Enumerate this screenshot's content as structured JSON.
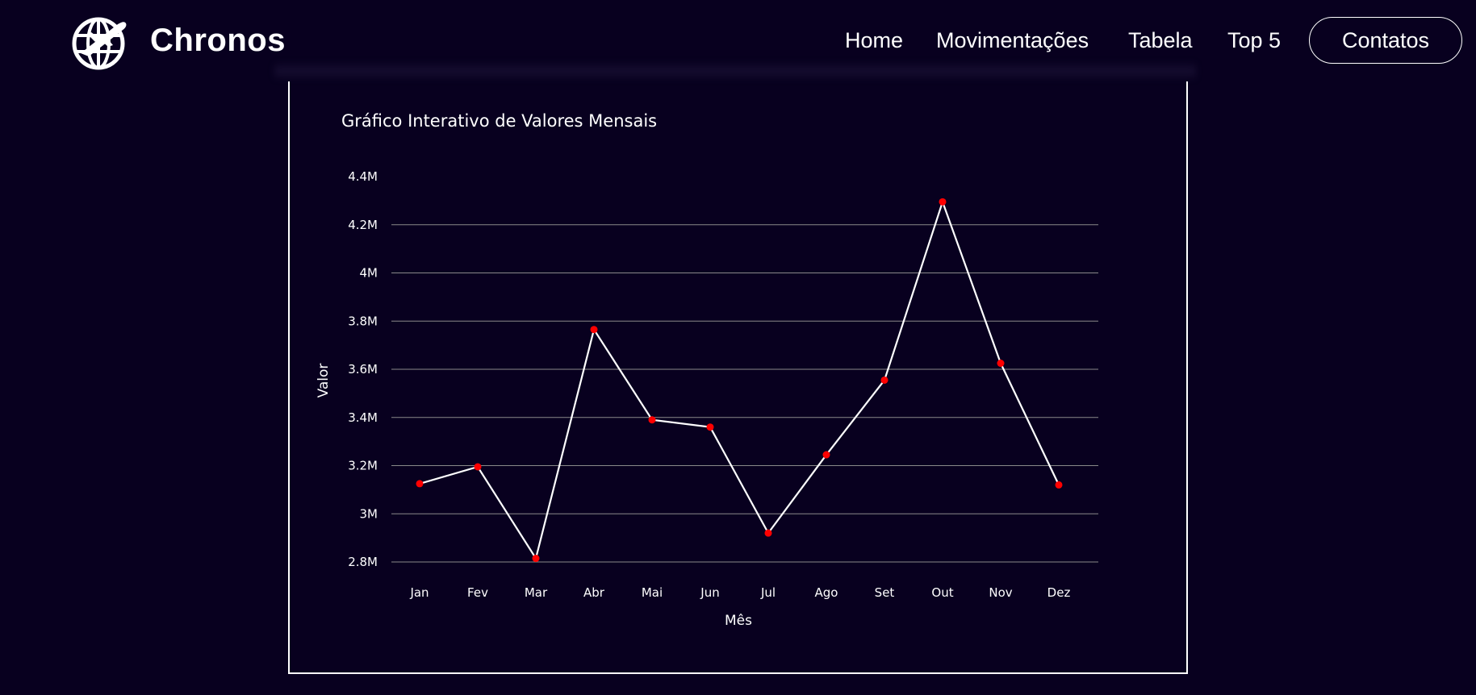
{
  "header": {
    "brand": "Chronos",
    "logo_icon": "globe-plane-icon",
    "nav": [
      {
        "label": "Home"
      },
      {
        "label": "Movimentações"
      },
      {
        "label": "Tabela"
      },
      {
        "label": "Top 5"
      }
    ],
    "contact_label": "Contatos"
  },
  "colors": {
    "background": "#08001f",
    "line": "#ffffff",
    "marker": "#ff0000",
    "grid": "#8a8a8a"
  },
  "chart_data": {
    "type": "line",
    "title": "Gráfico Interativo de Valores Mensais",
    "xlabel": "Mês",
    "ylabel": "Valor",
    "categories": [
      "Jan",
      "Fev",
      "Mar",
      "Abr",
      "Mai",
      "Jun",
      "Jul",
      "Ago",
      "Set",
      "Out",
      "Nov",
      "Dez"
    ],
    "values": [
      3125000,
      3195000,
      2815000,
      3765000,
      3390000,
      3360000,
      2920000,
      3245000,
      3555000,
      4295000,
      3625000,
      3120000
    ],
    "ylim": [
      2750000,
      4420000
    ],
    "yticks": [
      2800000,
      3000000,
      3200000,
      3400000,
      3600000,
      3800000,
      4000000,
      4200000,
      4400000
    ],
    "ytick_labels": [
      "2.8M",
      "3M",
      "3.2M",
      "3.4M",
      "3.6M",
      "3.8M",
      "4M",
      "4.2M",
      "4.4M"
    ],
    "grid": true,
    "legend": "none"
  }
}
